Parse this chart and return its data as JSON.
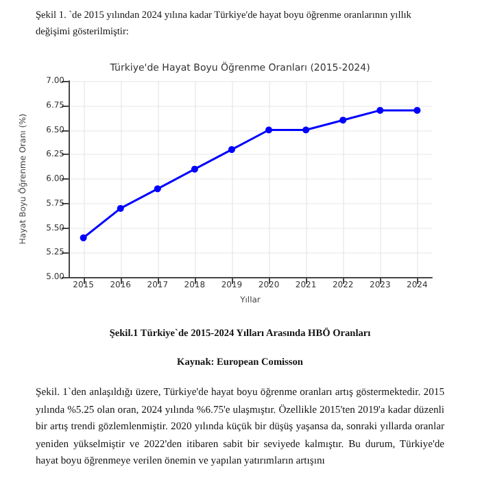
{
  "chart_data": {
    "type": "line",
    "title": "Türkiye'de Hayat Boyu Öğrenme Oranları (2015-2024)",
    "xlabel": "Yıllar",
    "ylabel": "Hayat Boyu Öğrenme Oranı (%)",
    "annotations": [
      "Şekil 1. `de 2015 yılından 2024 yılına kadar Türkiye'de hayat boyu öğrenme oranlarının yıllık değişimi gösterilmiştir:",
      "Şekil.1 Türkiye`de 2015-2024 Yılları Arasında HBÖ Oranları",
      "Kaynak: European Comisson",
      "Şekil. 1`den anlaşıldığı üzere, Türkiye'de hayat boyu öğrenme oranları artış göstermektedir. 2015 yılında %5.25 olan oran, 2024 yılında %6.75'e ulaşmıştır. Özellikle 2015'ten 2019'a kadar düzenli bir artış trendi gözlemlenmiştir. 2020 yılında küçük bir düşüş yaşansa da, sonraki yıllarda oranlar yeniden yükselmiştir ve 2022'den itibaren sabit bir seviyede kalmıştır. Bu durum, Türkiye'de hayat boyu öğrenmeye verilen önemin ve yapılan yatırımların artışını"
    ],
    "x": [
      2015,
      2016,
      2017,
      2018,
      2019,
      2020,
      2021,
      2022,
      2023,
      2024
    ],
    "series": [
      {
        "color": "#0000ff",
        "values": [
          5.4,
          5.7,
          5.9,
          6.1,
          6.3,
          6.5,
          6.5,
          6.6,
          6.7,
          6.7
        ]
      }
    ],
    "xlim": [
      2014.6,
      2024.4
    ],
    "xticks": [
      2015,
      2016,
      2017,
      2018,
      2019,
      2020,
      2021,
      2022,
      2023,
      2024
    ],
    "ylim": [
      5,
      7
    ],
    "yticks": [
      {
        "value": 5,
        "label": "5.00"
      },
      {
        "value": 5.25,
        "label": "5.25"
      },
      {
        "value": 5.5,
        "label": "5.50"
      },
      {
        "value": 5.75,
        "label": "5.75"
      },
      {
        "value": 6,
        "label": "6.00"
      },
      {
        "value": 6.25,
        "label": "6.25"
      },
      {
        "value": 6.5,
        "label": "6.50"
      },
      {
        "value": 6.75,
        "label": "6.75"
      },
      {
        "value": 7,
        "label": "7.00"
      }
    ],
    "grid": true,
    "marker": "circle",
    "line_style": "solid"
  }
}
